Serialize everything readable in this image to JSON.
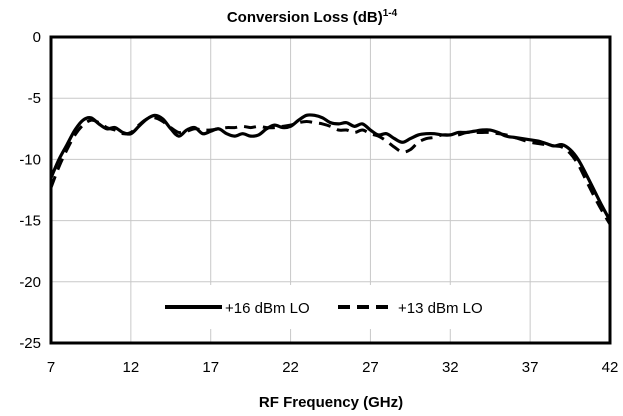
{
  "chart_data": {
    "type": "line",
    "title": "Conversion Loss (dB)",
    "title_superscript": "1-4",
    "xlabel": "RF Frequency (GHz)",
    "ylabel": "",
    "xlim": [
      7,
      42
    ],
    "ylim": [
      -25,
      0
    ],
    "xticks": [
      7,
      12,
      17,
      22,
      27,
      32,
      37,
      42
    ],
    "yticks": [
      0,
      -5,
      -10,
      -15,
      -20,
      -25
    ],
    "grid": true,
    "legend_position": "bottom-center",
    "series": [
      {
        "name": "+16 dBm LO",
        "style": "solid",
        "color": "#000000",
        "x": [
          7,
          7.5,
          8,
          8.5,
          9,
          9.5,
          10,
          10.5,
          11,
          11.5,
          12,
          12.5,
          13,
          13.5,
          14,
          14.5,
          15,
          15.5,
          16,
          16.5,
          17,
          17.5,
          18,
          18.5,
          19,
          19.5,
          20,
          20.5,
          21,
          21.5,
          22,
          22.5,
          23,
          23.5,
          24,
          24.5,
          25,
          25.5,
          26,
          26.5,
          27,
          27.5,
          28,
          28.5,
          29,
          29.5,
          30,
          30.5,
          31,
          31.5,
          32,
          32.5,
          33,
          33.5,
          34,
          34.5,
          35,
          35.5,
          36,
          36.5,
          37,
          37.5,
          38,
          38.5,
          39,
          39.5,
          40,
          40.5,
          41,
          41.5,
          42
        ],
        "y": [
          -11.5,
          -10.0,
          -8.8,
          -7.6,
          -6.8,
          -6.6,
          -7.1,
          -7.5,
          -7.4,
          -7.8,
          -7.9,
          -7.3,
          -6.7,
          -6.4,
          -6.7,
          -7.5,
          -8.1,
          -7.6,
          -7.4,
          -7.9,
          -7.7,
          -7.5,
          -7.9,
          -8.1,
          -7.9,
          -8.1,
          -8.0,
          -7.5,
          -7.2,
          -7.4,
          -7.3,
          -6.8,
          -6.4,
          -6.4,
          -6.6,
          -7.0,
          -7.1,
          -7.0,
          -7.3,
          -7.1,
          -7.6,
          -8.0,
          -7.9,
          -8.3,
          -8.6,
          -8.3,
          -8.0,
          -7.9,
          -7.9,
          -8.0,
          -8.0,
          -7.8,
          -7.8,
          -7.7,
          -7.6,
          -7.6,
          -7.8,
          -8.1,
          -8.2,
          -8.3,
          -8.4,
          -8.5,
          -8.7,
          -8.9,
          -8.8,
          -9.2,
          -10.0,
          -11.2,
          -12.5,
          -13.8,
          -15.0
        ]
      },
      {
        "name": "+13 dBm LO",
        "style": "dashed",
        "color": "#000000",
        "x": [
          7,
          7.5,
          8,
          8.5,
          9,
          9.5,
          10,
          10.5,
          11,
          11.5,
          12,
          12.5,
          13,
          13.5,
          14,
          14.5,
          15,
          15.5,
          16,
          16.5,
          17,
          17.5,
          18,
          18.5,
          19,
          19.5,
          20,
          20.5,
          21,
          21.5,
          22,
          22.5,
          23,
          23.5,
          24,
          24.5,
          25,
          25.5,
          26,
          26.5,
          27,
          27.5,
          28,
          28.5,
          29,
          29.5,
          30,
          30.5,
          31,
          31.5,
          32,
          32.5,
          33,
          33.5,
          34,
          34.5,
          35,
          35.5,
          36,
          36.5,
          37,
          37.5,
          38,
          38.5,
          39,
          39.5,
          40,
          40.5,
          41,
          41.5,
          42
        ],
        "y": [
          -12.3,
          -10.6,
          -9.2,
          -8.0,
          -7.2,
          -6.8,
          -7.0,
          -7.4,
          -7.6,
          -7.9,
          -7.8,
          -7.2,
          -6.7,
          -6.6,
          -6.9,
          -7.4,
          -7.8,
          -7.7,
          -7.5,
          -7.6,
          -7.6,
          -7.5,
          -7.4,
          -7.4,
          -7.3,
          -7.4,
          -7.3,
          -7.4,
          -7.4,
          -7.3,
          -7.2,
          -7.0,
          -6.9,
          -7.0,
          -7.1,
          -7.3,
          -7.6,
          -7.6,
          -7.8,
          -7.6,
          -7.9,
          -8.1,
          -8.5,
          -9.0,
          -9.4,
          -9.2,
          -8.6,
          -8.3,
          -8.2,
          -8.0,
          -8.0,
          -8.0,
          -7.8,
          -7.8,
          -7.8,
          -7.8,
          -7.9,
          -8.0,
          -8.2,
          -8.4,
          -8.6,
          -8.7,
          -8.8,
          -8.9,
          -9.0,
          -9.5,
          -10.4,
          -11.7,
          -13.0,
          -14.2,
          -15.3
        ]
      }
    ]
  }
}
